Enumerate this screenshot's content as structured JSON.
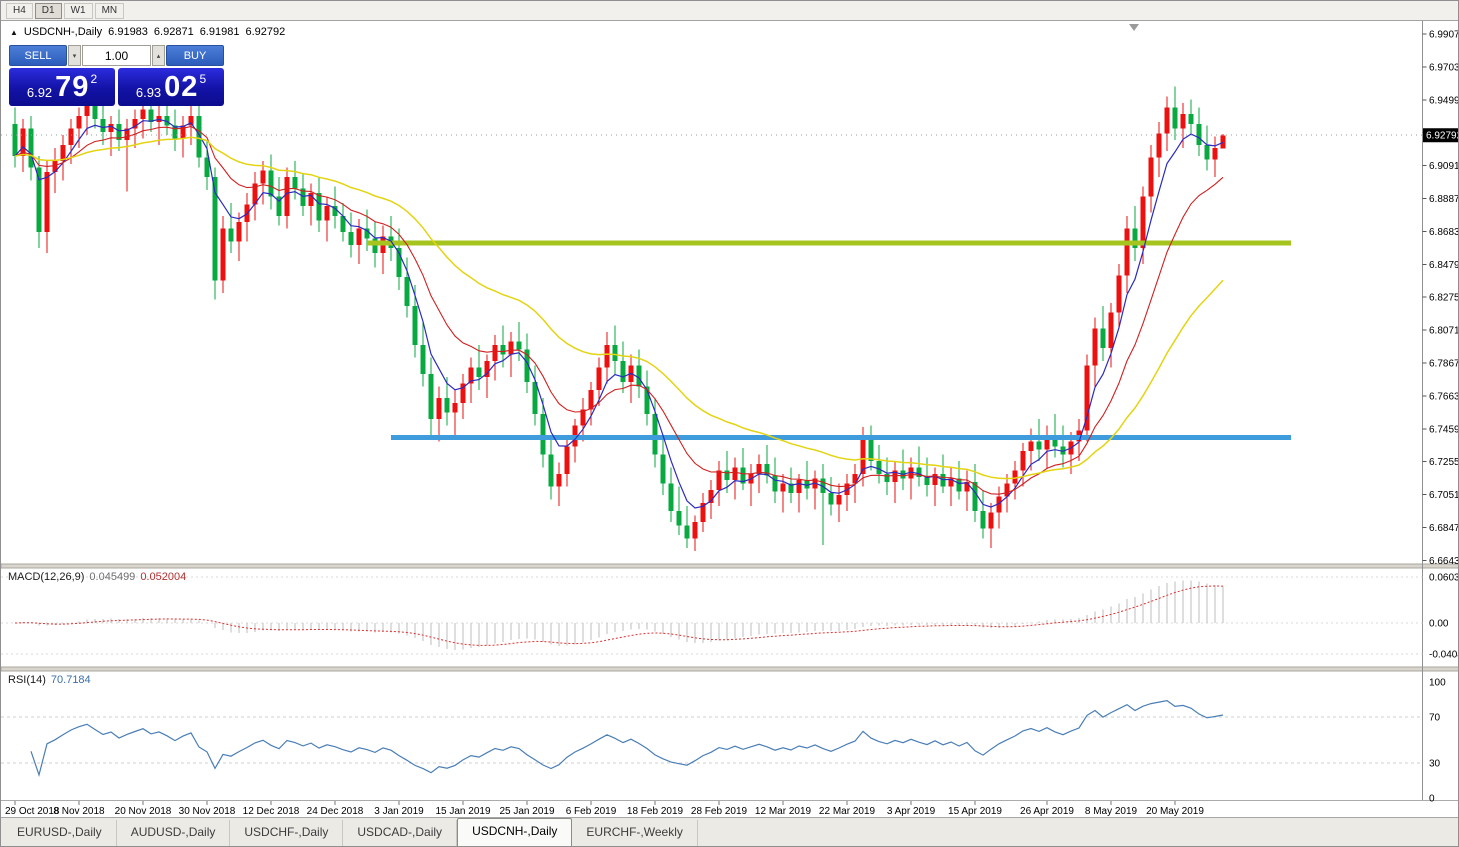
{
  "toolbar": {
    "timeframes": [
      "H4",
      "D1",
      "W1",
      "MN"
    ],
    "active_timeframe": "D1"
  },
  "chart": {
    "title": "USDCNH-,Daily",
    "ohlc": {
      "open": "6.91983",
      "high": "6.92871",
      "low": "6.91981",
      "close": "6.92792"
    },
    "current_price": "6.92792"
  },
  "trade_panel": {
    "sell_label": "SELL",
    "buy_label": "BUY",
    "volume": "1.00",
    "sell_price": {
      "small": "6.92",
      "big": "79",
      "sup": "2"
    },
    "buy_price": {
      "small": "6.93",
      "big": "02",
      "sup": "5"
    }
  },
  "macd_panel": {
    "label": "MACD(12,26,9)",
    "value_main": "0.045499",
    "value_signal": "0.052004"
  },
  "rsi_panel": {
    "label": "RSI(14)",
    "value": "70.7184"
  },
  "tabs": [
    {
      "label": "EURUSD-,Daily",
      "active": false
    },
    {
      "label": "AUDUSD-,Daily",
      "active": false
    },
    {
      "label": "USDCHF-,Daily",
      "active": false
    },
    {
      "label": "USDCAD-,Daily",
      "active": false
    },
    {
      "label": "USDCNH-,Daily",
      "active": true
    },
    {
      "label": "EURCHF-,Weekly",
      "active": false
    }
  ],
  "chart_data": {
    "type": "candlestick",
    "symbol": "USDCNH",
    "period": "Daily",
    "price_axis": {
      "top": 6.9907,
      "step": 0.0204,
      "labels": [
        "6.99070",
        "6.97030",
        "6.94990",
        "6.92950",
        "6.90910",
        "6.88870",
        "6.86830",
        "6.84790",
        "6.82750",
        "6.80710",
        "6.78670",
        "6.76630",
        "6.74590",
        "6.72550",
        "6.70510",
        "6.68470",
        "6.66430"
      ]
    },
    "x_labels": [
      {
        "label": "29 Oct 2018",
        "index": 0
      },
      {
        "label": "8 Nov 2018",
        "index": 8
      },
      {
        "label": "20 Nov 2018",
        "index": 16
      },
      {
        "label": "30 Nov 2018",
        "index": 24
      },
      {
        "label": "12 Dec 2018",
        "index": 32
      },
      {
        "label": "24 Dec 2018",
        "index": 40
      },
      {
        "label": "3 Jan 2019",
        "index": 48
      },
      {
        "label": "15 Jan 2019",
        "index": 56
      },
      {
        "label": "25 Jan 2019",
        "index": 64
      },
      {
        "label": "6 Feb 2019",
        "index": 72
      },
      {
        "label": "18 Feb 2019",
        "index": 80
      },
      {
        "label": "28 Feb 2019",
        "index": 88
      },
      {
        "label": "12 Mar 2019",
        "index": 96
      },
      {
        "label": "22 Mar 2019",
        "index": 104
      },
      {
        "label": "3 Apr 2019",
        "index": 112
      },
      {
        "label": "15 Apr 2019",
        "index": 120
      },
      {
        "label": "26 Apr 2019",
        "index": 129
      },
      {
        "label": "8 May 2019",
        "index": 137
      },
      {
        "label": "20 May 2019",
        "index": 145
      }
    ],
    "candles": [
      [
        6.935,
        6.945,
        6.908,
        6.915
      ],
      [
        6.915,
        6.938,
        6.905,
        6.932
      ],
      [
        6.932,
        6.94,
        6.9,
        6.908
      ],
      [
        6.908,
        6.915,
        6.858,
        6.868
      ],
      [
        6.868,
        6.912,
        6.855,
        6.905
      ],
      [
        6.905,
        6.92,
        6.892,
        6.912
      ],
      [
        6.912,
        6.928,
        6.9,
        6.922
      ],
      [
        6.922,
        6.938,
        6.91,
        6.932
      ],
      [
        6.932,
        6.945,
        6.92,
        6.94
      ],
      [
        6.94,
        6.952,
        6.928,
        6.946
      ],
      [
        6.946,
        6.955,
        6.932,
        6.938
      ],
      [
        6.938,
        6.948,
        6.922,
        6.93
      ],
      [
        6.93,
        6.94,
        6.915,
        6.935
      ],
      [
        6.935,
        6.944,
        6.918,
        6.925
      ],
      [
        6.925,
        6.938,
        6.893,
        6.932
      ],
      [
        6.932,
        6.944,
        6.92,
        6.938
      ],
      [
        6.938,
        6.95,
        6.926,
        6.944
      ],
      [
        6.944,
        6.954,
        6.93,
        6.936
      ],
      [
        6.936,
        6.946,
        6.922,
        6.94
      ],
      [
        6.94,
        6.95,
        6.928,
        6.934
      ],
      [
        6.934,
        6.944,
        6.918,
        6.926
      ],
      [
        6.926,
        6.94,
        6.914,
        6.934
      ],
      [
        6.934,
        6.946,
        6.922,
        6.94
      ],
      [
        6.94,
        6.948,
        6.908,
        6.914
      ],
      [
        6.914,
        6.924,
        6.894,
        6.902
      ],
      [
        6.902,
        6.908,
        6.826,
        6.838
      ],
      [
        6.838,
        6.878,
        6.83,
        6.87
      ],
      [
        6.87,
        6.886,
        6.855,
        6.862
      ],
      [
        6.862,
        6.88,
        6.85,
        6.874
      ],
      [
        6.874,
        6.892,
        6.862,
        6.885
      ],
      [
        6.885,
        6.905,
        6.875,
        6.898
      ],
      [
        6.898,
        6.912,
        6.885,
        6.906
      ],
      [
        6.906,
        6.916,
        6.882,
        6.89
      ],
      [
        6.89,
        6.902,
        6.872,
        6.878
      ],
      [
        6.878,
        6.908,
        6.87,
        6.902
      ],
      [
        6.902,
        6.912,
        6.888,
        6.895
      ],
      [
        6.895,
        6.904,
        6.878,
        6.884
      ],
      [
        6.884,
        6.898,
        6.872,
        6.892
      ],
      [
        6.892,
        6.902,
        6.868,
        6.875
      ],
      [
        6.875,
        6.89,
        6.862,
        6.884
      ],
      [
        6.884,
        6.896,
        6.87,
        6.878
      ],
      [
        6.878,
        6.886,
        6.862,
        6.868
      ],
      [
        6.868,
        6.88,
        6.852,
        6.86
      ],
      [
        6.86,
        6.876,
        6.848,
        6.87
      ],
      [
        6.87,
        6.882,
        6.856,
        6.864
      ],
      [
        6.864,
        6.874,
        6.846,
        6.855
      ],
      [
        6.855,
        6.872,
        6.842,
        6.865
      ],
      [
        6.865,
        6.878,
        6.85,
        6.858
      ],
      [
        6.858,
        6.87,
        6.832,
        6.84
      ],
      [
        6.84,
        6.852,
        6.815,
        6.822
      ],
      [
        6.822,
        6.835,
        6.79,
        6.798
      ],
      [
        6.798,
        6.812,
        6.772,
        6.78
      ],
      [
        6.78,
        6.79,
        6.742,
        6.752
      ],
      [
        6.752,
        6.772,
        6.738,
        6.765
      ],
      [
        6.765,
        6.778,
        6.748,
        6.756
      ],
      [
        6.756,
        6.77,
        6.742,
        6.762
      ],
      [
        6.762,
        6.78,
        6.752,
        6.774
      ],
      [
        6.774,
        6.79,
        6.762,
        6.784
      ],
      [
        6.784,
        6.798,
        6.77,
        6.778
      ],
      [
        6.778,
        6.792,
        6.765,
        6.788
      ],
      [
        6.788,
        6.804,
        6.776,
        6.798
      ],
      [
        6.798,
        6.81,
        6.784,
        6.792
      ],
      [
        6.792,
        6.806,
        6.778,
        6.8
      ],
      [
        6.8,
        6.812,
        6.788,
        6.795
      ],
      [
        6.795,
        6.805,
        6.768,
        6.775
      ],
      [
        6.775,
        6.785,
        6.748,
        6.755
      ],
      [
        6.755,
        6.765,
        6.722,
        6.73
      ],
      [
        6.73,
        6.742,
        6.702,
        6.71
      ],
      [
        6.71,
        6.725,
        6.698,
        6.718
      ],
      [
        6.718,
        6.74,
        6.71,
        6.735
      ],
      [
        6.735,
        6.752,
        6.725,
        6.748
      ],
      [
        6.748,
        6.765,
        6.738,
        6.758
      ],
      [
        6.758,
        6.775,
        6.748,
        6.77
      ],
      [
        6.77,
        6.79,
        6.76,
        6.784
      ],
      [
        6.784,
        6.806,
        6.774,
        6.798
      ],
      [
        6.798,
        6.81,
        6.78,
        6.788
      ],
      [
        6.788,
        6.8,
        6.768,
        6.775
      ],
      [
        6.775,
        6.792,
        6.762,
        6.785
      ],
      [
        6.785,
        6.795,
        6.765,
        6.772
      ],
      [
        6.772,
        6.782,
        6.748,
        6.755
      ],
      [
        6.755,
        6.765,
        6.722,
        6.73
      ],
      [
        6.73,
        6.742,
        6.705,
        6.712
      ],
      [
        6.712,
        6.722,
        6.688,
        6.695
      ],
      [
        6.695,
        6.71,
        6.68,
        6.686
      ],
      [
        6.686,
        6.698,
        6.672,
        6.678
      ],
      [
        6.678,
        6.692,
        6.67,
        6.688
      ],
      [
        6.688,
        6.706,
        6.682,
        6.7
      ],
      [
        6.7,
        6.714,
        6.69,
        6.708
      ],
      [
        6.708,
        6.726,
        6.698,
        6.72
      ],
      [
        6.72,
        6.732,
        6.706,
        6.714
      ],
      [
        6.714,
        6.728,
        6.702,
        6.722
      ],
      [
        6.722,
        6.734,
        6.708,
        6.712
      ],
      [
        6.712,
        6.724,
        6.698,
        6.718
      ],
      [
        6.718,
        6.73,
        6.706,
        6.724
      ],
      [
        6.724,
        6.736,
        6.712,
        6.717
      ],
      [
        6.717,
        6.728,
        6.7,
        6.707
      ],
      [
        6.707,
        6.718,
        6.694,
        6.712
      ],
      [
        6.712,
        6.722,
        6.7,
        6.706
      ],
      [
        6.706,
        6.718,
        6.694,
        6.714
      ],
      [
        6.714,
        6.726,
        6.702,
        6.709
      ],
      [
        6.709,
        6.72,
        6.696,
        6.715
      ],
      [
        6.715,
        6.724,
        6.674,
        6.706
      ],
      [
        6.706,
        6.716,
        6.692,
        6.699
      ],
      [
        6.699,
        6.712,
        6.688,
        6.705
      ],
      [
        6.705,
        6.718,
        6.695,
        6.712
      ],
      [
        6.712,
        6.724,
        6.7,
        6.718
      ],
      [
        6.718,
        6.747,
        6.71,
        6.74
      ],
      [
        6.74,
        6.748,
        6.72,
        6.726
      ],
      [
        6.726,
        6.736,
        6.712,
        6.718
      ],
      [
        6.718,
        6.728,
        6.705,
        6.713
      ],
      [
        6.713,
        6.726,
        6.7,
        6.72
      ],
      [
        6.72,
        6.733,
        6.708,
        6.715
      ],
      [
        6.715,
        6.728,
        6.702,
        6.722
      ],
      [
        6.722,
        6.735,
        6.71,
        6.716
      ],
      [
        6.716,
        6.728,
        6.704,
        6.711
      ],
      [
        6.711,
        6.722,
        6.698,
        6.718
      ],
      [
        6.718,
        6.73,
        6.706,
        6.71
      ],
      [
        6.71,
        6.722,
        6.698,
        6.715
      ],
      [
        6.715,
        6.726,
        6.702,
        6.707
      ],
      [
        6.707,
        6.72,
        6.695,
        6.713
      ],
      [
        6.713,
        6.724,
        6.688,
        6.695
      ],
      [
        6.695,
        6.708,
        6.678,
        6.684
      ],
      [
        6.684,
        6.7,
        6.672,
        6.694
      ],
      [
        6.694,
        6.71,
        6.684,
        6.704
      ],
      [
        6.704,
        6.718,
        6.694,
        6.712
      ],
      [
        6.712,
        6.726,
        6.702,
        6.72
      ],
      [
        6.72,
        6.737,
        6.71,
        6.732
      ],
      [
        6.732,
        6.746,
        6.72,
        6.738
      ],
      [
        6.738,
        6.752,
        6.726,
        6.733
      ],
      [
        6.733,
        6.748,
        6.721,
        6.742
      ],
      [
        6.742,
        6.755,
        6.728,
        6.735
      ],
      [
        6.735,
        6.748,
        6.722,
        6.73
      ],
      [
        6.73,
        6.744,
        6.718,
        6.738
      ],
      [
        6.738,
        6.752,
        6.726,
        6.745
      ],
      [
        6.745,
        6.792,
        6.738,
        6.785
      ],
      [
        6.785,
        6.815,
        6.772,
        6.808
      ],
      [
        6.808,
        6.822,
        6.788,
        6.796
      ],
      [
        6.796,
        6.824,
        6.784,
        6.818
      ],
      [
        6.818,
        6.848,
        6.808,
        6.841
      ],
      [
        6.841,
        6.878,
        6.83,
        6.87
      ],
      [
        6.87,
        6.884,
        6.85,
        6.858
      ],
      [
        6.858,
        6.896,
        6.848,
        6.89
      ],
      [
        6.89,
        6.922,
        6.88,
        6.914
      ],
      [
        6.914,
        6.936,
        6.902,
        6.929
      ],
      [
        6.929,
        6.952,
        6.918,
        6.945
      ],
      [
        6.945,
        6.958,
        6.925,
        6.932
      ],
      [
        6.932,
        6.948,
        6.92,
        6.941
      ],
      [
        6.941,
        6.95,
        6.928,
        6.935
      ],
      [
        6.935,
        6.945,
        6.915,
        6.922
      ],
      [
        6.922,
        6.934,
        6.906,
        6.913
      ],
      [
        6.913,
        6.927,
        6.902,
        6.92
      ],
      [
        6.9198,
        6.9287,
        6.9198,
        6.9279
      ]
    ],
    "overlays": {
      "moving_averages": [
        {
          "name": "ma-fast",
          "period": 5,
          "color": "#2B2BC0",
          "width": 1.2
        },
        {
          "name": "ma-mid",
          "period": 13,
          "color": "#D02020",
          "width": 1.1
        },
        {
          "name": "ma-slow",
          "period": 34,
          "color": "#E3D411",
          "width": 1.5
        }
      ],
      "horizontal_lines": [
        {
          "name": "resistance",
          "price": 6.861,
          "color": "#A6C41E",
          "from_index": 44,
          "to_index": 159.5
        },
        {
          "name": "support",
          "price": 6.7405,
          "color": "#3E9BDC",
          "from_index": 47,
          "to_index": 159.5
        }
      ]
    },
    "macd": {
      "fast": 12,
      "slow": 26,
      "signal_period": 9,
      "axis_labels": [
        "0.060342",
        "0.00",
        "-0.040410"
      ]
    },
    "rsi": {
      "period": 14,
      "axis_labels": [
        "100",
        "70",
        "30",
        "0"
      ],
      "levels": [
        70,
        30
      ]
    },
    "colors": {
      "bull": "#EE0F0F",
      "bear": "#09A942",
      "macd_histogram": "#BDBDBD",
      "macd_signal": "#E03030",
      "rsi_line": "#4A7EB5",
      "price_tag_bg": "#000000",
      "price_tag_text": "#FFFFFF"
    }
  }
}
